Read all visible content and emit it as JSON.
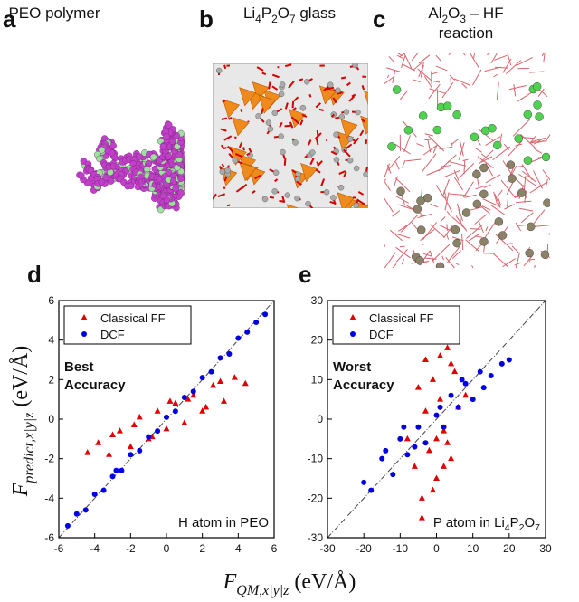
{
  "panels": [
    {
      "letter": "a",
      "caption": [
        "PEO polymer"
      ]
    },
    {
      "letter": "b",
      "caption": [
        "Li",
        "4",
        "P",
        "2",
        "O",
        "7",
        " glass"
      ]
    },
    {
      "letter": "c",
      "caption": [
        "Al",
        "2",
        "O",
        "3",
        " – HF"
      ],
      "caption2": "reaction"
    }
  ],
  "y_label": {
    "symbol": "F",
    "subscript": "predict,x|y|z",
    "unit": "(eV/Å)"
  },
  "x_label": {
    "symbol": "F",
    "subscript": "QM,x|y|z",
    "unit": "(eV/Å)"
  },
  "chart_data": [
    {
      "type": "scatter",
      "letter": "d",
      "annotation": [
        "Best",
        "Accuracy"
      ],
      "note": [
        "H atom in PEO"
      ],
      "xlim": [
        -6,
        6
      ],
      "ylim": [
        -6,
        6
      ],
      "xticks": [
        -6,
        -4,
        -2,
        0,
        2,
        4,
        6
      ],
      "yticks": [
        -6,
        -4,
        -2,
        0,
        2,
        4,
        6
      ],
      "legend": "upper left",
      "series": [
        {
          "name": "Classical FF",
          "color": "#e00000",
          "marker": "triangle",
          "x": [
            -4.4,
            -3.8,
            -3.2,
            -2.6,
            -2,
            -1.5,
            -1,
            -0.5,
            0,
            0.5,
            1,
            1.5,
            2,
            2.6,
            3.2,
            3.8,
            4.4,
            -3,
            -1.8,
            0.2,
            1.2,
            2.2,
            3,
            -0.8
          ],
          "values": [
            -1.7,
            -1.2,
            -1.8,
            -0.6,
            -1.4,
            0.1,
            -1.0,
            0.4,
            -0.5,
            0.8,
            -0.2,
            1.2,
            0.4,
            1.7,
            0.9,
            2.1,
            1.8,
            -0.8,
            -0.3,
            0.9,
            1.0,
            0.6,
            1.9,
            -0.9
          ]
        },
        {
          "name": "DCF",
          "color": "#0000e0",
          "marker": "circle",
          "x": [
            -5.5,
            -5,
            -4.5,
            -4,
            -3.5,
            -3,
            -2.5,
            -2,
            -1.5,
            -1,
            -0.5,
            0,
            0.5,
            1,
            1.5,
            2,
            2.5,
            3,
            3.5,
            4,
            4.5,
            5,
            5.5,
            -2.8
          ],
          "values": [
            -5.4,
            -4.8,
            -4.6,
            -3.8,
            -3.6,
            -2.9,
            -2.6,
            -1.8,
            -1.6,
            -0.9,
            -0.6,
            0.1,
            0.4,
            1.1,
            1.4,
            2.1,
            2.4,
            3.1,
            3.3,
            4.1,
            4.4,
            4.9,
            5.3,
            -2.6
          ]
        }
      ]
    },
    {
      "type": "scatter",
      "letter": "e",
      "annotation": [
        "Worst",
        "Accuracy"
      ],
      "note": [
        "P atom in Li",
        "4",
        "P",
        "2",
        "O",
        "7"
      ],
      "xlim": [
        -30,
        30
      ],
      "ylim": [
        -30,
        30
      ],
      "xticks": [
        -30,
        -20,
        -10,
        0,
        10,
        20,
        30
      ],
      "yticks": [
        -30,
        -20,
        -10,
        0,
        10,
        20,
        30
      ],
      "legend": "upper left",
      "series": [
        {
          "name": "Classical FF",
          "color": "#e00000",
          "marker": "triangle",
          "x": [
            -8,
            -6,
            -5,
            -4,
            -3,
            -2,
            -1,
            0,
            1,
            2,
            3,
            4,
            5,
            6,
            8,
            -4,
            -2,
            0,
            2,
            4,
            -3,
            3,
            -1,
            1
          ],
          "values": [
            -5,
            -12,
            8,
            -20,
            15,
            -8,
            10,
            -15,
            5,
            -3,
            18,
            -10,
            12,
            3,
            6,
            -25,
            20,
            -5,
            -12,
            14,
            2,
            -6,
            -18,
            16
          ]
        },
        {
          "name": "DCF",
          "color": "#0000e0",
          "marker": "circle",
          "x": [
            -20,
            -18,
            -15,
            -12,
            -10,
            -8,
            -5,
            -3,
            0,
            2,
            4,
            6,
            8,
            10,
            12,
            15,
            18,
            20,
            -14,
            -6,
            1,
            7,
            13,
            -9
          ],
          "values": [
            -16,
            -18,
            -10,
            -14,
            -5,
            -9,
            -2,
            -6,
            1,
            -2,
            6,
            3,
            9,
            5,
            12,
            11,
            14,
            15,
            -8,
            -7,
            3,
            10,
            8,
            -2
          ]
        }
      ]
    }
  ]
}
